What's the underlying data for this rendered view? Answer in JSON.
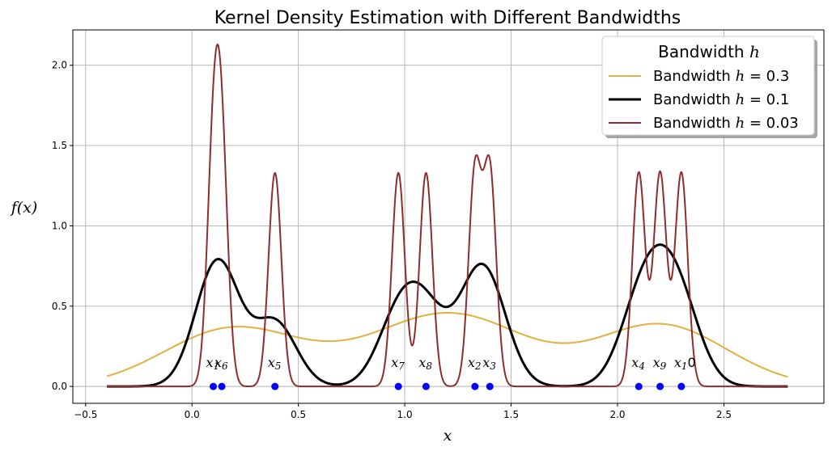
{
  "chart_data": {
    "type": "line",
    "title": "Kernel Density Estimation with Different Bandwidths",
    "xlabel": "x",
    "ylabel": "f(x)",
    "xlim": [
      -0.56,
      2.97
    ],
    "ylim": [
      -0.105,
      2.22
    ],
    "xticks": [
      -0.5,
      0.0,
      0.5,
      1.0,
      1.5,
      2.0,
      2.5
    ],
    "xtick_labels": [
      "−0.5",
      "0.0",
      "0.5",
      "1.0",
      "1.5",
      "2.0",
      "2.5"
    ],
    "yticks": [
      0.0,
      0.5,
      1.0,
      1.5,
      2.0
    ],
    "ytick_labels": [
      "0.0",
      "0.5",
      "1.0",
      "1.5",
      "2.0"
    ],
    "grid": true,
    "x_range": [
      -0.4,
      2.8
    ],
    "points": [
      {
        "label": "x1",
        "x": 0.1
      },
      {
        "label": "x2",
        "x": 1.33
      },
      {
        "label": "x3",
        "x": 1.4
      },
      {
        "label": "x4",
        "x": 2.1
      },
      {
        "label": "x5",
        "x": 0.39
      },
      {
        "label": "x6",
        "x": 0.14
      },
      {
        "label": "x7",
        "x": 0.97
      },
      {
        "label": "x8",
        "x": 1.1
      },
      {
        "label": "x9",
        "x": 2.2
      },
      {
        "label": "x10",
        "x": 2.3
      }
    ],
    "point_color": "#0000ff",
    "series": [
      {
        "name": "Bandwidth h = 0.3",
        "legend_prefix": "Bandwidth ",
        "legend_var": "h",
        "legend_suffix": " = 0.3",
        "bandwidth": 0.3,
        "color": "#e0b040",
        "width": 2.0
      },
      {
        "name": "Bandwidth h = 0.1",
        "legend_prefix": "Bandwidth ",
        "legend_var": "h",
        "legend_suffix": " = 0.1",
        "bandwidth": 0.1,
        "color": "#000000",
        "width": 3.0
      },
      {
        "name": "Bandwidth h = 0.03",
        "legend_prefix": "Bandwidth ",
        "legend_var": "h",
        "legend_suffix": " = 0.03",
        "bandwidth": 0.03,
        "color": "#8f2d2d",
        "width": 2.0
      }
    ],
    "legend": {
      "title_prefix": "Bandwidth ",
      "title_var": "h",
      "placement": "top-right"
    }
  }
}
